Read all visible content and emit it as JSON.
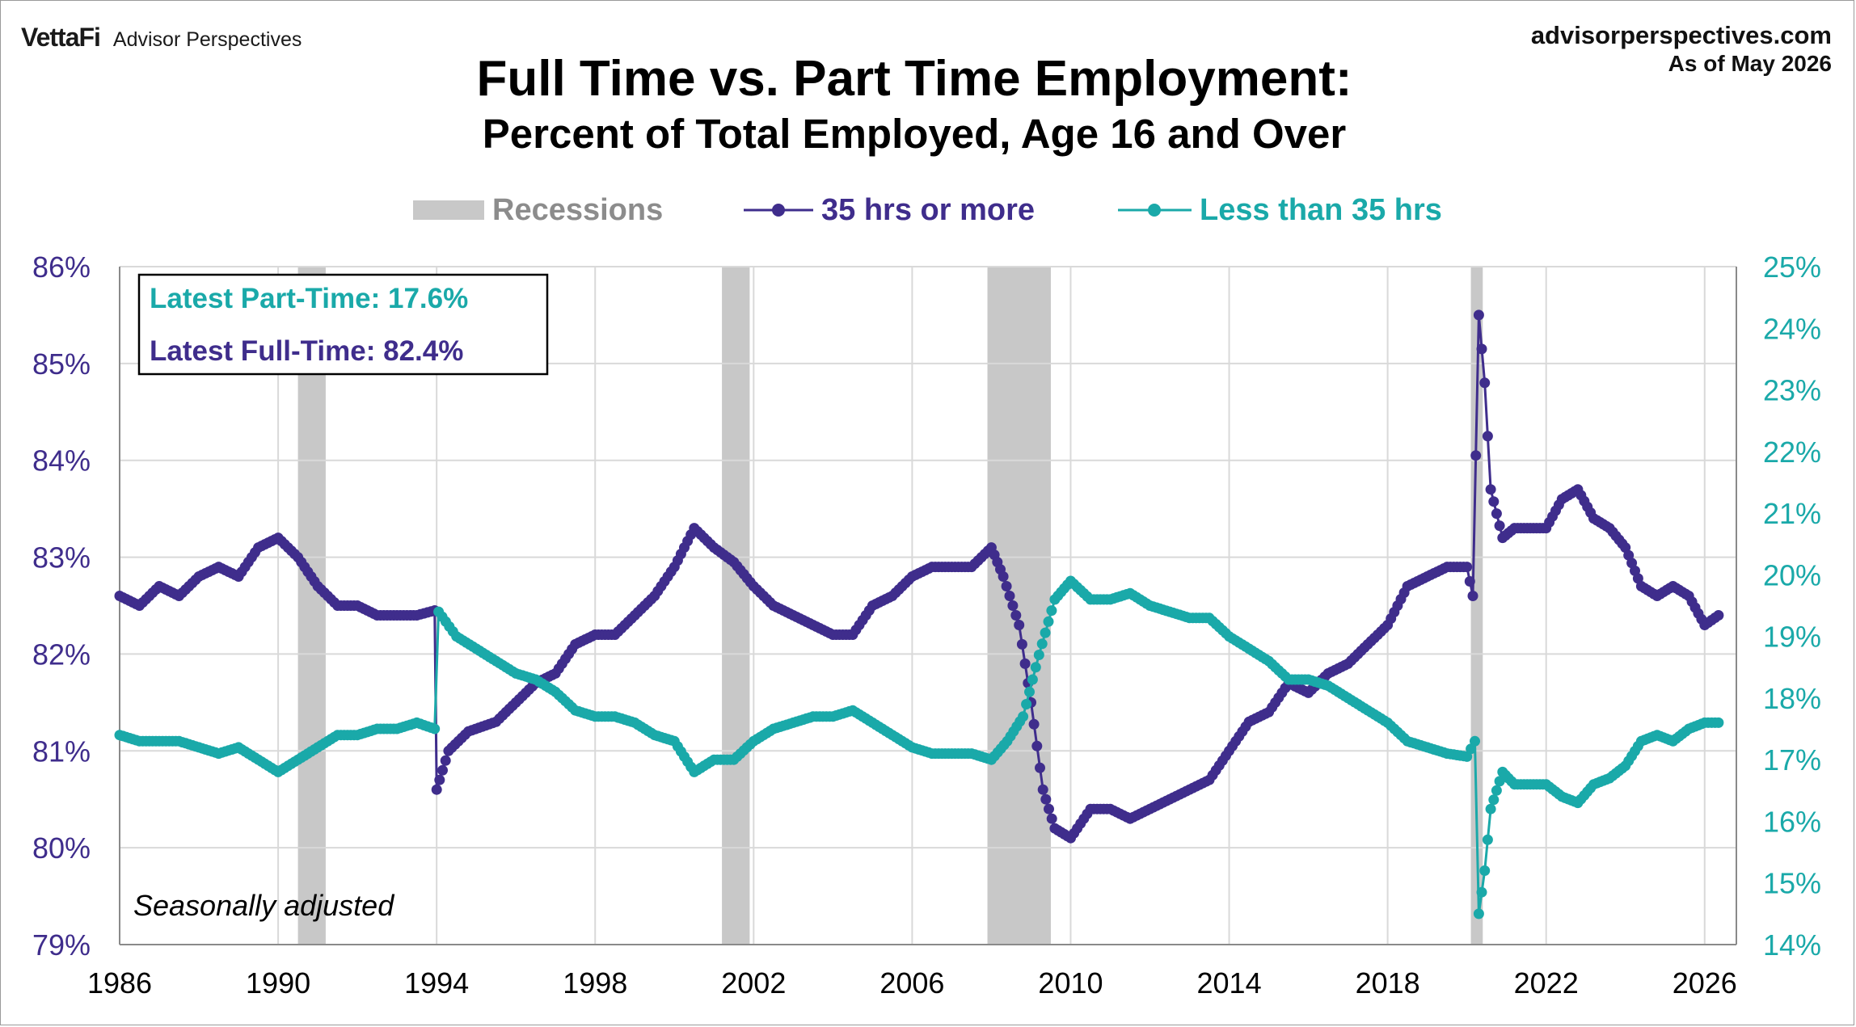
{
  "header": {
    "brand_logo": "VettaFi",
    "brand_name": "Advisor Perspectives",
    "source_url": "advisorperspectives.com",
    "as_of": "As of May 2026"
  },
  "chart_data": {
    "type": "line",
    "title": "Full Time vs. Part Time Employment:",
    "subtitle": "Percent of Total Employed, Age 16 and Over",
    "note": "Seasonally adjusted",
    "latest_part_time": "Latest Part-Time: 17.6%",
    "latest_full_time": "Latest Full-Time: 82.4%",
    "legend": {
      "recessions": "Recessions",
      "full_time": "35 hrs or more",
      "part_time": "Less than 35 hrs"
    },
    "colors": {
      "full_time": "#3f2d8c",
      "part_time": "#1aa9a9",
      "recession": "#c8c8c8",
      "grid": "#d9d9d9"
    },
    "x_range": [
      1986,
      2026.8
    ],
    "x_ticks": [
      "1986",
      "1990",
      "1994",
      "1998",
      "2002",
      "2006",
      "2010",
      "2014",
      "2018",
      "2022",
      "2026"
    ],
    "y_left": {
      "range": [
        79,
        86
      ],
      "ticks": [
        "79%",
        "80%",
        "81%",
        "82%",
        "83%",
        "84%",
        "85%",
        "86%"
      ]
    },
    "y_right": {
      "range": [
        14,
        25
      ],
      "ticks": [
        "14%",
        "15%",
        "16%",
        "17%",
        "18%",
        "19%",
        "20%",
        "21%",
        "22%",
        "23%",
        "24%",
        "25%"
      ]
    },
    "recessions": [
      [
        1990.5,
        1991.2
      ],
      [
        2001.2,
        2001.9
      ],
      [
        2007.9,
        2009.5
      ],
      [
        2020.1,
        2020.4
      ]
    ],
    "series": [
      {
        "name": "35 hrs or more",
        "axis": "left",
        "points": [
          [
            1986.0,
            82.6
          ],
          [
            1986.5,
            82.5
          ],
          [
            1987.0,
            82.7
          ],
          [
            1987.5,
            82.6
          ],
          [
            1988.0,
            82.8
          ],
          [
            1988.5,
            82.9
          ],
          [
            1989.0,
            82.8
          ],
          [
            1989.5,
            83.1
          ],
          [
            1990.0,
            83.2
          ],
          [
            1990.5,
            83.0
          ],
          [
            1991.0,
            82.7
          ],
          [
            1991.5,
            82.5
          ],
          [
            1992.0,
            82.5
          ],
          [
            1992.5,
            82.4
          ],
          [
            1993.0,
            82.4
          ],
          [
            1993.5,
            82.4
          ],
          [
            1993.95,
            82.45
          ],
          [
            1994.0,
            80.6
          ],
          [
            1994.3,
            81.0
          ],
          [
            1994.8,
            81.2
          ],
          [
            1995.5,
            81.3
          ],
          [
            1996.0,
            81.5
          ],
          [
            1996.5,
            81.7
          ],
          [
            1997.0,
            81.8
          ],
          [
            1997.5,
            82.1
          ],
          [
            1998.0,
            82.2
          ],
          [
            1998.5,
            82.2
          ],
          [
            1999.0,
            82.4
          ],
          [
            1999.5,
            82.6
          ],
          [
            2000.0,
            82.9
          ],
          [
            2000.5,
            83.3
          ],
          [
            2001.0,
            83.1
          ],
          [
            2001.5,
            82.95
          ],
          [
            2002.0,
            82.7
          ],
          [
            2002.5,
            82.5
          ],
          [
            2003.0,
            82.4
          ],
          [
            2003.5,
            82.3
          ],
          [
            2004.0,
            82.2
          ],
          [
            2004.5,
            82.2
          ],
          [
            2005.0,
            82.5
          ],
          [
            2005.5,
            82.6
          ],
          [
            2006.0,
            82.8
          ],
          [
            2006.5,
            82.9
          ],
          [
            2007.0,
            82.9
          ],
          [
            2007.5,
            82.9
          ],
          [
            2008.0,
            83.1
          ],
          [
            2008.3,
            82.8
          ],
          [
            2008.7,
            82.3
          ],
          [
            2009.0,
            81.5
          ],
          [
            2009.3,
            80.6
          ],
          [
            2009.6,
            80.2
          ],
          [
            2010.0,
            80.1
          ],
          [
            2010.5,
            80.4
          ],
          [
            2011.0,
            80.4
          ],
          [
            2011.5,
            80.3
          ],
          [
            2012.0,
            80.4
          ],
          [
            2012.5,
            80.5
          ],
          [
            2013.0,
            80.6
          ],
          [
            2013.5,
            80.7
          ],
          [
            2014.0,
            81.0
          ],
          [
            2014.5,
            81.3
          ],
          [
            2015.0,
            81.4
          ],
          [
            2015.5,
            81.7
          ],
          [
            2016.0,
            81.6
          ],
          [
            2016.5,
            81.8
          ],
          [
            2017.0,
            81.9
          ],
          [
            2017.5,
            82.1
          ],
          [
            2018.0,
            82.3
          ],
          [
            2018.5,
            82.7
          ],
          [
            2019.0,
            82.8
          ],
          [
            2019.5,
            82.9
          ],
          [
            2020.0,
            82.9
          ],
          [
            2020.15,
            82.6
          ],
          [
            2020.3,
            85.5
          ],
          [
            2020.45,
            84.8
          ],
          [
            2020.6,
            83.7
          ],
          [
            2020.9,
            83.2
          ],
          [
            2021.2,
            83.3
          ],
          [
            2021.6,
            83.3
          ],
          [
            2022.0,
            83.3
          ],
          [
            2022.4,
            83.6
          ],
          [
            2022.8,
            83.7
          ],
          [
            2023.2,
            83.4
          ],
          [
            2023.6,
            83.3
          ],
          [
            2024.0,
            83.1
          ],
          [
            2024.4,
            82.7
          ],
          [
            2024.8,
            82.6
          ],
          [
            2025.2,
            82.7
          ],
          [
            2025.6,
            82.6
          ],
          [
            2026.0,
            82.3
          ],
          [
            2026.35,
            82.4
          ]
        ]
      },
      {
        "name": "Less than 35 hrs",
        "axis": "right",
        "points": [
          [
            1986.0,
            17.4
          ],
          [
            1986.5,
            17.3
          ],
          [
            1987.0,
            17.3
          ],
          [
            1987.5,
            17.3
          ],
          [
            1988.0,
            17.2
          ],
          [
            1988.5,
            17.1
          ],
          [
            1989.0,
            17.2
          ],
          [
            1989.5,
            17.0
          ],
          [
            1990.0,
            16.8
          ],
          [
            1990.5,
            17.0
          ],
          [
            1991.0,
            17.2
          ],
          [
            1991.5,
            17.4
          ],
          [
            1992.0,
            17.4
          ],
          [
            1992.5,
            17.5
          ],
          [
            1993.0,
            17.5
          ],
          [
            1993.5,
            17.6
          ],
          [
            1993.95,
            17.5
          ],
          [
            1994.05,
            19.4
          ],
          [
            1994.5,
            19.0
          ],
          [
            1995.0,
            18.8
          ],
          [
            1995.5,
            18.6
          ],
          [
            1996.0,
            18.4
          ],
          [
            1996.5,
            18.3
          ],
          [
            1997.0,
            18.1
          ],
          [
            1997.5,
            17.8
          ],
          [
            1998.0,
            17.7
          ],
          [
            1998.5,
            17.7
          ],
          [
            1999.0,
            17.6
          ],
          [
            1999.5,
            17.4
          ],
          [
            2000.0,
            17.3
          ],
          [
            2000.5,
            16.8
          ],
          [
            2001.0,
            17.0
          ],
          [
            2001.5,
            17.0
          ],
          [
            2002.0,
            17.3
          ],
          [
            2002.5,
            17.5
          ],
          [
            2003.0,
            17.6
          ],
          [
            2003.5,
            17.7
          ],
          [
            2004.0,
            17.7
          ],
          [
            2004.5,
            17.8
          ],
          [
            2005.0,
            17.6
          ],
          [
            2005.5,
            17.4
          ],
          [
            2006.0,
            17.2
          ],
          [
            2006.5,
            17.1
          ],
          [
            2007.0,
            17.1
          ],
          [
            2007.5,
            17.1
          ],
          [
            2008.0,
            17.0
          ],
          [
            2008.4,
            17.3
          ],
          [
            2008.8,
            17.7
          ],
          [
            2009.2,
            18.7
          ],
          [
            2009.6,
            19.6
          ],
          [
            2010.0,
            19.9
          ],
          [
            2010.5,
            19.6
          ],
          [
            2011.0,
            19.6
          ],
          [
            2011.5,
            19.7
          ],
          [
            2012.0,
            19.5
          ],
          [
            2012.5,
            19.4
          ],
          [
            2013.0,
            19.3
          ],
          [
            2013.5,
            19.3
          ],
          [
            2014.0,
            19.0
          ],
          [
            2014.5,
            18.8
          ],
          [
            2015.0,
            18.6
          ],
          [
            2015.5,
            18.3
          ],
          [
            2016.0,
            18.3
          ],
          [
            2016.5,
            18.2
          ],
          [
            2017.0,
            18.0
          ],
          [
            2017.5,
            17.8
          ],
          [
            2018.0,
            17.6
          ],
          [
            2018.5,
            17.3
          ],
          [
            2019.0,
            17.2
          ],
          [
            2019.5,
            17.1
          ],
          [
            2020.0,
            17.05
          ],
          [
            2020.2,
            17.3
          ],
          [
            2020.3,
            14.5
          ],
          [
            2020.45,
            15.2
          ],
          [
            2020.6,
            16.2
          ],
          [
            2020.9,
            16.8
          ],
          [
            2021.2,
            16.6
          ],
          [
            2021.6,
            16.6
          ],
          [
            2022.0,
            16.6
          ],
          [
            2022.4,
            16.4
          ],
          [
            2022.8,
            16.3
          ],
          [
            2023.2,
            16.6
          ],
          [
            2023.6,
            16.7
          ],
          [
            2024.0,
            16.9
          ],
          [
            2024.4,
            17.3
          ],
          [
            2024.8,
            17.4
          ],
          [
            2025.2,
            17.3
          ],
          [
            2025.6,
            17.5
          ],
          [
            2026.0,
            17.6
          ],
          [
            2026.35,
            17.6
          ]
        ]
      }
    ]
  }
}
